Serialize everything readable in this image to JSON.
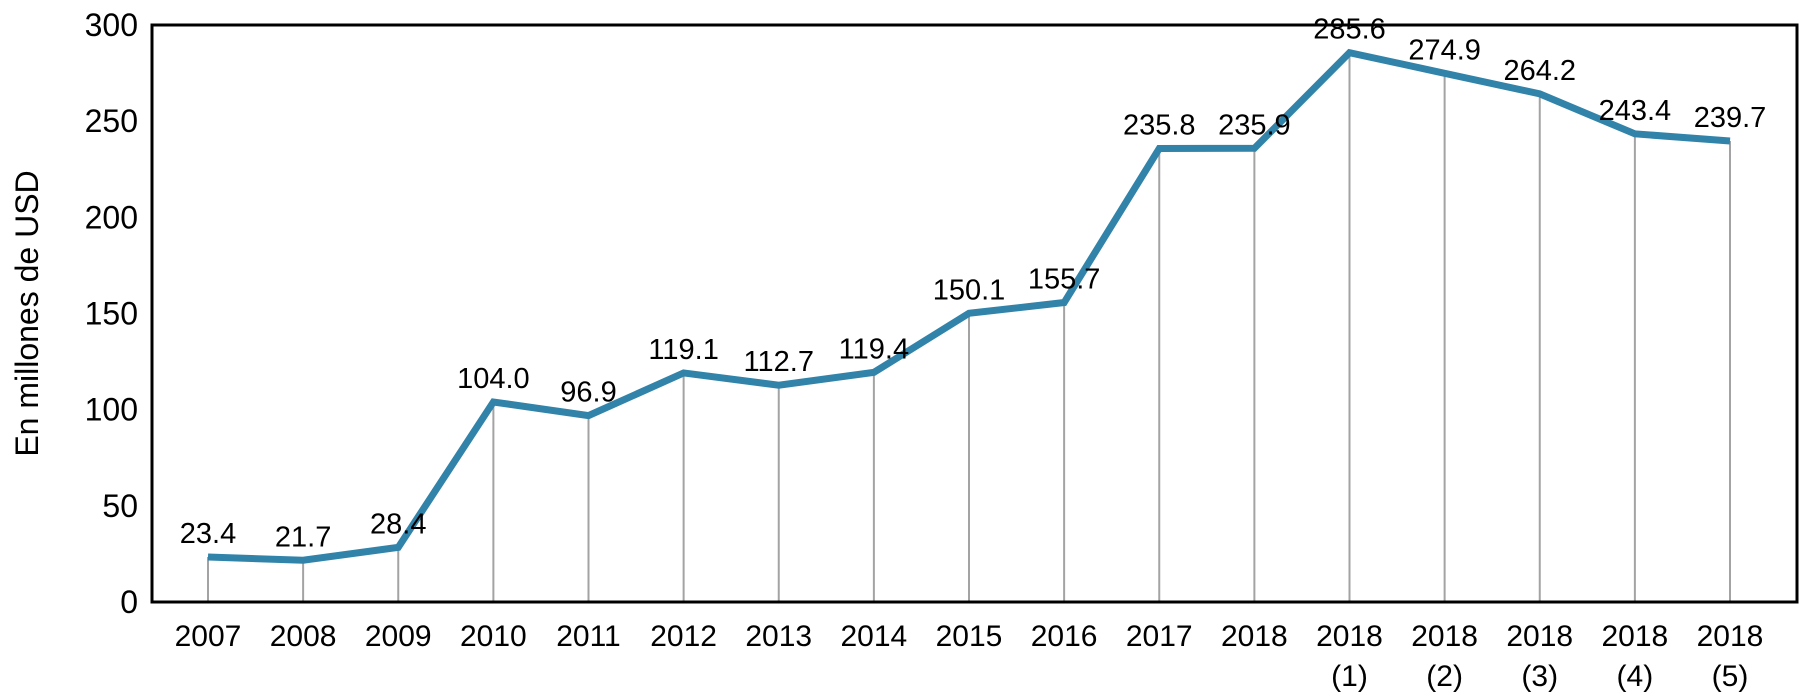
{
  "chart_data": {
    "type": "line",
    "title": "",
    "xlabel": "",
    "ylabel": "En millones de USD",
    "ylim": [
      0,
      300
    ],
    "yticks": [
      0,
      50,
      100,
      150,
      200,
      250,
      300
    ],
    "grid": "off",
    "legend": "none",
    "categories": [
      "2007",
      "2008",
      "2009",
      "2010",
      "2011",
      "2012",
      "2013",
      "2014",
      "2015",
      "2016",
      "2017",
      "2018",
      "2018 (1)",
      "2018 (2)",
      "2018 (3)",
      "2018 (4)",
      "2018 (5)"
    ],
    "values": [
      23.4,
      21.7,
      28.4,
      104.0,
      96.9,
      119.1,
      112.7,
      119.4,
      150.1,
      155.7,
      235.8,
      235.9,
      285.6,
      274.9,
      264.2,
      243.4,
      239.7
    ],
    "value_labels": [
      "23.4",
      "21.7",
      "28.4",
      "104.0",
      "96.9",
      "119.1",
      "112.7",
      "119.4",
      "150.1",
      "155.7",
      "235.8",
      "235.9",
      "285.6",
      "274.9",
      "264.2",
      "243.4",
      "239.7"
    ],
    "series_name": "En millones de USD",
    "annotations": "value labels shown above each point, vertical drop lines from each point to x-axis",
    "colors": {
      "line": "#3183A9",
      "drop_line": "#A3A3A3",
      "spine": "#000000",
      "text": "#000000",
      "background": "#FFFFFF"
    }
  }
}
